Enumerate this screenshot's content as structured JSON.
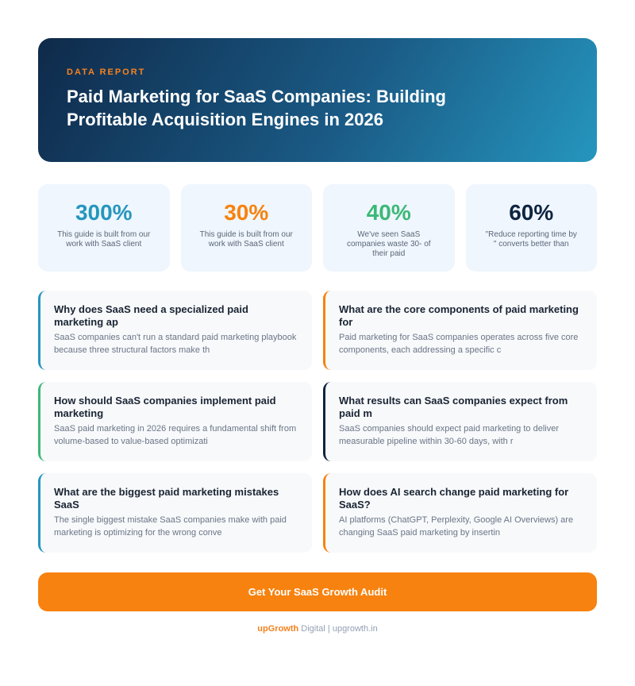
{
  "hero": {
    "eyebrow": "DATA REPORT",
    "title": "Paid Marketing for SaaS Companies: Building Profitable Acquisition Engines in 2026"
  },
  "stats": [
    {
      "value": "300%",
      "label": "This guide is built from our work with SaaS client",
      "color": "#2596be"
    },
    {
      "value": "30%",
      "label": "This guide is built from our work with SaaS client",
      "color": "#f7820f"
    },
    {
      "value": "40%",
      "label": "We've seen SaaS companies waste 30- of their paid",
      "color": "#3cb878"
    },
    {
      "value": "60%",
      "label": "\"Reduce reporting time by \" converts better than",
      "color": "#0f2440"
    }
  ],
  "cards": [
    {
      "title": "Why does SaaS need a specialized paid marketing ap",
      "text": "SaaS companies can't run a standard paid marketing playbook because three structural factors make th",
      "accent": "#2596be"
    },
    {
      "title": "What are the core components of paid marketing for",
      "text": "Paid marketing for SaaS companies operates across five core components, each addressing a specific c",
      "accent": "#f7820f"
    },
    {
      "title": "How should SaaS companies implement paid marketing",
      "text": "SaaS paid marketing in 2026 requires a fundamental shift from volume-based to value-based optimizati",
      "accent": "#3cb878"
    },
    {
      "title": "What results can SaaS companies expect from paid m",
      "text": "SaaS companies should expect paid marketing to deliver measurable pipeline within 30-60 days, with r",
      "accent": "#0f2440"
    },
    {
      "title": "What are the biggest paid marketing mistakes SaaS",
      "text": "The single biggest mistake SaaS companies make with paid marketing is optimizing for the wrong conve",
      "accent": "#2596be"
    },
    {
      "title": "How does AI search change paid marketing for SaaS?",
      "text": "AI platforms (ChatGPT, Perplexity, Google AI Overviews) are changing SaaS paid marketing by insertin",
      "accent": "#f7820f"
    }
  ],
  "cta": {
    "label": "Get Your SaaS Growth Audit"
  },
  "footer": {
    "brand": "upGrowth",
    "suffix": " Digital | upgrowth.in"
  }
}
